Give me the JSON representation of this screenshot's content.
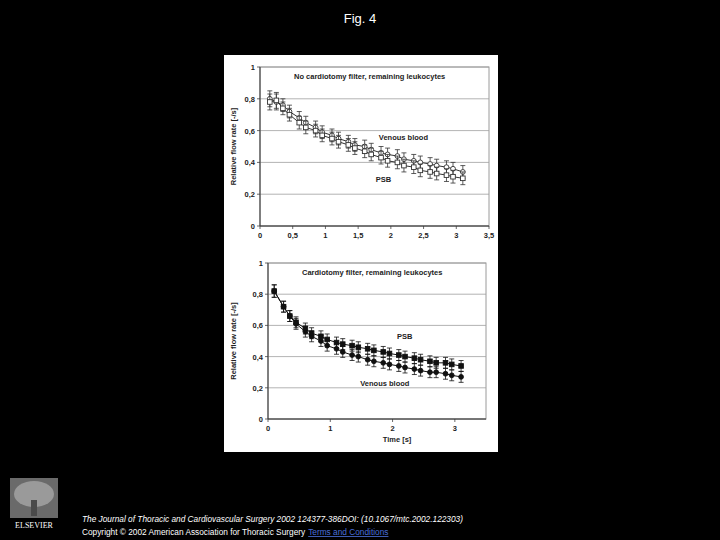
{
  "title": "Fig. 4",
  "chart_data": [
    {
      "type": "line",
      "title": "No cardiotomy filter, remaining leukocytes",
      "y_label": "Relative flow rate [-/s]",
      "x": [
        0.15,
        0.25,
        0.35,
        0.45,
        0.6,
        0.7,
        0.85,
        0.95,
        1.1,
        1.2,
        1.35,
        1.45,
        1.6,
        1.7,
        1.85,
        1.95,
        2.1,
        2.2,
        2.35,
        2.45,
        2.6,
        2.7,
        2.85,
        2.95,
        3.1
      ],
      "series": [
        {
          "name": "Venous blood",
          "color": "#333333",
          "marker": "open-circle",
          "values": [
            0.8,
            0.78,
            0.76,
            0.72,
            0.68,
            0.65,
            0.62,
            0.59,
            0.57,
            0.55,
            0.53,
            0.51,
            0.5,
            0.48,
            0.46,
            0.45,
            0.44,
            0.42,
            0.41,
            0.4,
            0.39,
            0.38,
            0.37,
            0.36,
            0.34
          ],
          "errors": [
            0.05,
            0.05,
            0.04,
            0.04,
            0.04,
            0.04,
            0.04,
            0.04,
            0.04,
            0.04,
            0.04,
            0.04,
            0.04,
            0.04,
            0.04,
            0.04,
            0.04,
            0.04,
            0.04,
            0.04,
            0.04,
            0.04,
            0.04,
            0.04,
            0.04
          ]
        },
        {
          "name": "PSB",
          "color": "#333333",
          "marker": "open-square",
          "values": [
            0.78,
            0.79,
            0.74,
            0.7,
            0.65,
            0.62,
            0.6,
            0.57,
            0.55,
            0.53,
            0.51,
            0.49,
            0.47,
            0.45,
            0.43,
            0.41,
            0.4,
            0.38,
            0.37,
            0.35,
            0.34,
            0.33,
            0.32,
            0.31,
            0.3
          ],
          "errors": [
            0.05,
            0.05,
            0.04,
            0.04,
            0.04,
            0.04,
            0.04,
            0.04,
            0.04,
            0.04,
            0.04,
            0.04,
            0.04,
            0.04,
            0.04,
            0.04,
            0.04,
            0.04,
            0.04,
            0.04,
            0.04,
            0.04,
            0.04,
            0.04,
            0.04
          ]
        }
      ],
      "xlim": [
        0,
        3.5
      ],
      "xticks": [
        0,
        {
          "value": 0.5,
          "label": "0,5"
        },
        1,
        {
          "value": 1.5,
          "label": "1,5"
        },
        2,
        {
          "value": 2.5,
          "label": "2,5"
        },
        3,
        {
          "value": 3.5,
          "label": "3,5"
        }
      ],
      "ylim": [
        0,
        1
      ],
      "yticks": [
        0,
        {
          "value": 0.2,
          "label": "0,2"
        },
        {
          "value": 0.4,
          "label": "0,4"
        },
        {
          "value": 0.6,
          "label": "0,6"
        },
        {
          "value": 0.8,
          "label": "0,8"
        },
        1
      ],
      "grid": true
    },
    {
      "type": "line",
      "title": "Cardiotomy filter, remaining leukocytes",
      "y_label": "Relative flow rate [-/s]",
      "x_label": "Time [s]",
      "x": [
        0.1,
        0.25,
        0.35,
        0.45,
        0.6,
        0.7,
        0.85,
        0.95,
        1.1,
        1.2,
        1.35,
        1.45,
        1.6,
        1.7,
        1.85,
        1.95,
        2.1,
        2.2,
        2.35,
        2.45,
        2.6,
        2.7,
        2.85,
        2.95,
        3.1
      ],
      "series": [
        {
          "name": "Venous blood",
          "color": "#111111",
          "marker": "circle",
          "values": [
            0.82,
            0.72,
            0.66,
            0.61,
            0.56,
            0.53,
            0.5,
            0.47,
            0.45,
            0.43,
            0.41,
            0.4,
            0.38,
            0.37,
            0.36,
            0.35,
            0.34,
            0.33,
            0.32,
            0.31,
            0.3,
            0.3,
            0.29,
            0.28,
            0.27
          ],
          "errors": [
            0.04,
            0.035,
            0.035,
            0.035,
            0.035,
            0.035,
            0.035,
            0.035,
            0.035,
            0.035,
            0.035,
            0.035,
            0.035,
            0.035,
            0.035,
            0.035,
            0.035,
            0.035,
            0.035,
            0.035,
            0.035,
            0.035,
            0.035,
            0.035,
            0.035
          ]
        },
        {
          "name": "PSB",
          "color": "#111111",
          "marker": "square",
          "values": [
            0.82,
            0.72,
            0.66,
            0.62,
            0.58,
            0.55,
            0.53,
            0.51,
            0.49,
            0.48,
            0.47,
            0.46,
            0.45,
            0.44,
            0.43,
            0.42,
            0.41,
            0.4,
            0.39,
            0.38,
            0.37,
            0.36,
            0.36,
            0.35,
            0.34
          ],
          "errors": [
            0.04,
            0.035,
            0.035,
            0.035,
            0.035,
            0.035,
            0.035,
            0.035,
            0.035,
            0.035,
            0.035,
            0.035,
            0.035,
            0.035,
            0.035,
            0.035,
            0.035,
            0.035,
            0.035,
            0.035,
            0.035,
            0.035,
            0.035,
            0.035,
            0.035
          ]
        }
      ],
      "xlim": [
        0,
        3.5
      ],
      "xticks": [
        0,
        1,
        2,
        3
      ],
      "ylim": [
        0,
        1
      ],
      "yticks": [
        0,
        {
          "value": 0.2,
          "label": "0,2"
        },
        {
          "value": 0.4,
          "label": "0,4"
        },
        {
          "value": 0.6,
          "label": "0,6"
        },
        {
          "value": 0.8,
          "label": "0,8"
        },
        1
      ],
      "grid": true
    }
  ],
  "footer": {
    "citation": "The Journal of Thoracic and Cardiovascular Surgery 2002 124377-386DOI: (10.1067/mtc.2002.122303)",
    "copyright": "Copyright © 2002 American Association for Thoracic Surgery",
    "link": "Terms and Conditions",
    "publisher": "ELSEVIER"
  }
}
